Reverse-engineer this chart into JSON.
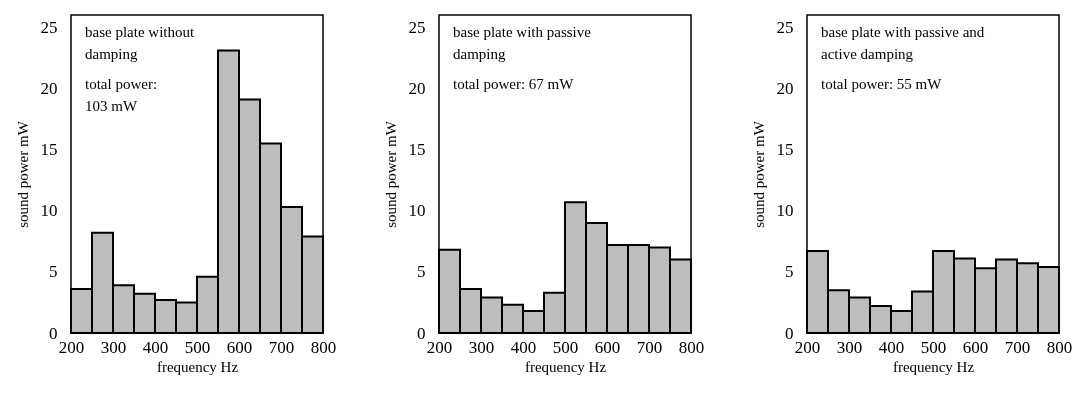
{
  "chart_data": [
    {
      "type": "histogram",
      "bins": [
        200,
        250,
        300,
        350,
        400,
        450,
        500,
        550,
        600,
        650,
        700,
        750,
        800
      ],
      "values": [
        3.6,
        8.2,
        3.9,
        3.2,
        2.7,
        2.5,
        4.6,
        23.1,
        19.1,
        15.5,
        10.3,
        7.9
      ],
      "color": "#bdbdbd",
      "xlim": [
        200,
        800
      ],
      "xticks": [
        200,
        300,
        400,
        500,
        600,
        700,
        800
      ],
      "ylim": [
        0,
        26
      ],
      "yticks": [
        0,
        5,
        10,
        15,
        20,
        25
      ],
      "xlabel": "frequency Hz",
      "ylabel": "sound power   mW",
      "annotations": [
        "base plate without\ndamping",
        "total power:\n103 mW"
      ]
    },
    {
      "type": "histogram",
      "bins": [
        200,
        250,
        300,
        350,
        400,
        450,
        500,
        550,
        600,
        650,
        700,
        750,
        800
      ],
      "values": [
        6.8,
        3.6,
        2.9,
        2.3,
        1.8,
        3.3,
        10.7,
        9.0,
        7.2,
        7.2,
        7.0,
        6.0
      ],
      "color": "#bdbdbd",
      "xlim": [
        200,
        800
      ],
      "xticks": [
        200,
        300,
        400,
        500,
        600,
        700,
        800
      ],
      "ylim": [
        0,
        26
      ],
      "yticks": [
        0,
        5,
        10,
        15,
        20,
        25
      ],
      "xlabel": "frequency Hz",
      "ylabel": "sound power   mW",
      "annotations": [
        "base plate with passive\ndamping",
        "total power:  67 mW"
      ]
    },
    {
      "type": "histogram",
      "bins": [
        200,
        250,
        300,
        350,
        400,
        450,
        500,
        550,
        600,
        650,
        700,
        750,
        800
      ],
      "values": [
        6.7,
        3.5,
        2.9,
        2.2,
        1.8,
        3.4,
        6.7,
        6.1,
        5.3,
        6.0,
        5.7,
        5.4
      ],
      "color": "#bdbdbd",
      "xlim": [
        200,
        800
      ],
      "xticks": [
        200,
        300,
        400,
        500,
        600,
        700,
        800
      ],
      "ylim": [
        0,
        26
      ],
      "yticks": [
        0,
        5,
        10,
        15,
        20,
        25
      ],
      "xlabel": "frequency Hz",
      "ylabel": "sound power   mW",
      "annotations": [
        "base plate with passive and\nactive damping",
        "total power:  55 mW"
      ]
    }
  ]
}
